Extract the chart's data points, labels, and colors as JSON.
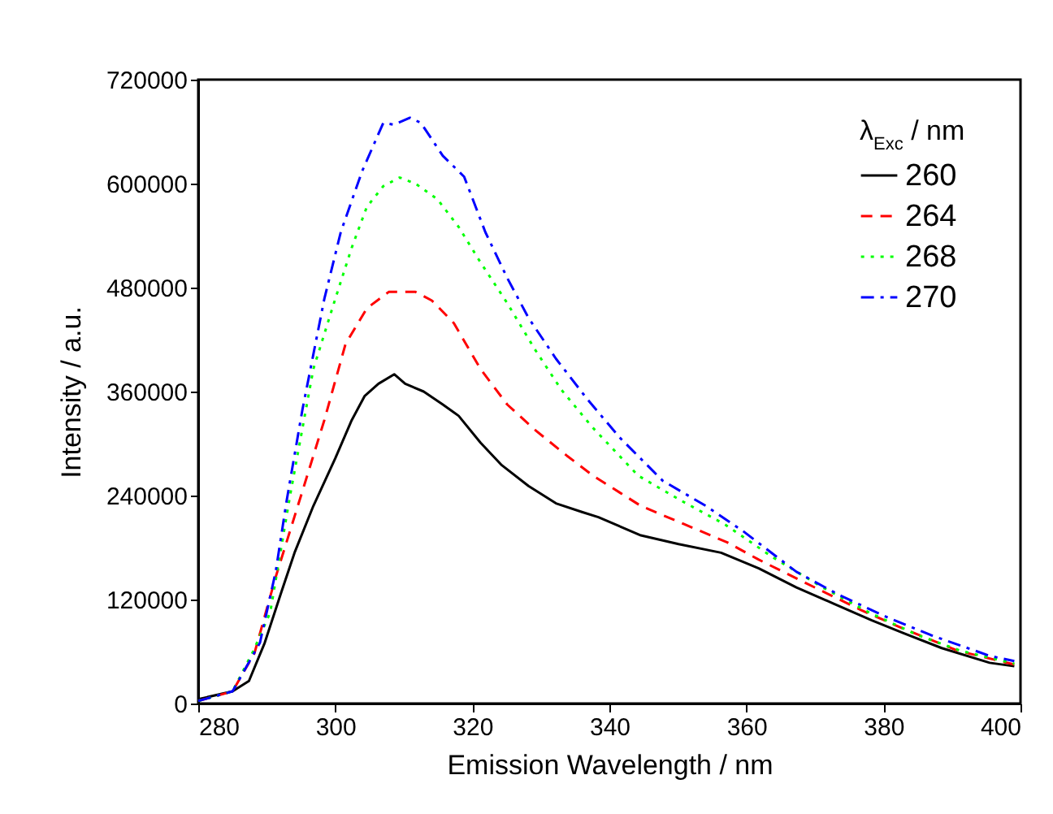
{
  "chart_data": {
    "type": "line",
    "xlabel": "Emission Wavelength / nm",
    "ylabel": "Intensity / a.u.",
    "legend_title": "λ$_{Exc}$ / nm",
    "legend": "top right",
    "grid": false,
    "xlim": [
      280,
      400
    ],
    "xticks": [
      280,
      300,
      320,
      340,
      360,
      380,
      400
    ],
    "ylim": [
      0,
      720000
    ],
    "yticks": [
      0,
      120000,
      240000,
      360000,
      480000,
      600000,
      720000
    ],
    "series": [
      {
        "name": "260",
        "color": "#000000",
        "line_style": "solid",
        "x": [
          280,
          285,
          287.4,
          289.7,
          292.1,
          294.1,
          296.8,
          300,
          302.4,
          304.3,
          306.3,
          308.6,
          310.2,
          312.9,
          315.7,
          318,
          321.2,
          324.3,
          328.2,
          332.2,
          336,
          338.4,
          344.6,
          350.1,
          356.3,
          361.8,
          367.3,
          372.8,
          378.3,
          383,
          388.5,
          395.5,
          399.1
        ],
        "values": [
          5000,
          14000,
          26000,
          70000,
          128000,
          175000,
          228000,
          283000,
          327000,
          355000,
          369000,
          380000,
          369000,
          360000,
          345000,
          332000,
          301000,
          275000,
          251000,
          231000,
          221000,
          215000,
          194000,
          184000,
          174000,
          156000,
          134000,
          115000,
          96000,
          81000,
          64000,
          47000,
          43000
        ]
      },
      {
        "name": "264",
        "color": "#ff0000",
        "line_style": "dashed",
        "x": [
          280,
          285,
          288.2,
          291.3,
          295.2,
          298.4,
          301.5,
          304.6,
          307.8,
          311.7,
          314.1,
          317.3,
          321.2,
          325.1,
          329.1,
          333.8,
          337.6,
          344.6,
          350.9,
          357.2,
          361.8,
          369.7,
          376.7,
          383,
          390.8,
          399.1
        ],
        "values": [
          3000,
          14000,
          58000,
          146000,
          245000,
          327000,
          415000,
          456000,
          475000,
          475000,
          465000,
          439000,
          386000,
          345000,
          316000,
          286000,
          263000,
          228000,
          207000,
          186000,
          166000,
          135000,
          108000,
          86000,
          61000,
          45000
        ]
      },
      {
        "name": "268",
        "color": "#00ff00",
        "line_style": "dotted",
        "x": [
          280,
          285,
          288,
          290.5,
          293.4,
          296.8,
          300,
          302.4,
          304.6,
          307,
          309.4,
          311.7,
          314.9,
          318,
          321.2,
          325.1,
          329.1,
          333,
          337.5,
          344.2,
          350.5,
          356.8,
          363.8,
          370.9,
          377.9,
          385,
          391.2,
          399.1
        ],
        "values": [
          3000,
          14000,
          60000,
          105000,
          240000,
          386000,
          467000,
          526000,
          573000,
          597000,
          607000,
          600000,
          582000,
          550000,
          509000,
          462000,
          409000,
          362000,
          319000,
          263000,
          234000,
          207000,
          169000,
          135000,
          105000,
          79000,
          61000,
          46000
        ]
      },
      {
        "name": "270",
        "color": "#0000ff",
        "line_style": "dashdot",
        "x": [
          280,
          285,
          289,
          291.3,
          292.9,
          295.2,
          298.4,
          300.8,
          303.9,
          307,
          308.6,
          310.9,
          312.5,
          315.7,
          318.8,
          321.9,
          325.1,
          328.2,
          332.2,
          336.8,
          341.5,
          347.8,
          354.1,
          359.5,
          367.3,
          373.6,
          380.7,
          386.9,
          395.5,
          399.1
        ],
        "values": [
          3000,
          14000,
          70000,
          152000,
          234000,
          339000,
          467000,
          544000,
          614000,
          670000,
          668000,
          676000,
          670000,
          632000,
          608000,
          544000,
          491000,
          445000,
          398000,
          351000,
          307000,
          257000,
          228000,
          199000,
          152000,
          125000,
          99000,
          79000,
          55000,
          49000
        ]
      }
    ]
  }
}
